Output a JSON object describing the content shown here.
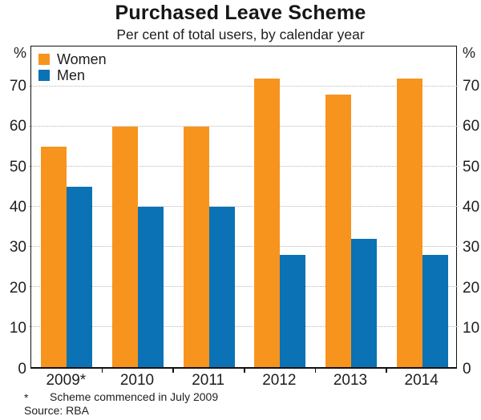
{
  "title": "Purchased Leave Scheme",
  "subtitle": "Per cent of total users, by calendar year",
  "axis": {
    "unit_label": "%",
    "ticks": [
      0,
      10,
      20,
      30,
      40,
      50,
      60,
      70
    ],
    "max": 80
  },
  "legend": [
    {
      "label": "Women",
      "color": "#F7941E"
    },
    {
      "label": "Men",
      "color": "#0B72B5"
    }
  ],
  "footnote": {
    "marker": "*",
    "text": "Scheme commenced in July 2009"
  },
  "source": "Source: RBA",
  "chart_data": {
    "type": "bar",
    "title": "Purchased Leave Scheme",
    "subtitle": "Per cent of total users, by calendar year",
    "categories": [
      "2009*",
      "2010",
      "2011",
      "2012",
      "2013",
      "2014"
    ],
    "series": [
      {
        "name": "Women",
        "color": "#F7941E",
        "values": [
          55,
          60,
          60,
          72,
          68,
          72
        ]
      },
      {
        "name": "Men",
        "color": "#0B72B5",
        "values": [
          45,
          40,
          40,
          28,
          32,
          28
        ]
      }
    ],
    "xlabel": "",
    "ylabel": "%",
    "ylim": [
      0,
      80
    ],
    "grid": true,
    "gridline_values": [
      10,
      20,
      30,
      40,
      50,
      60,
      70
    ],
    "legend_position": "top-left",
    "footnote": "* Scheme commenced in July 2009",
    "source": "Source: RBA"
  }
}
